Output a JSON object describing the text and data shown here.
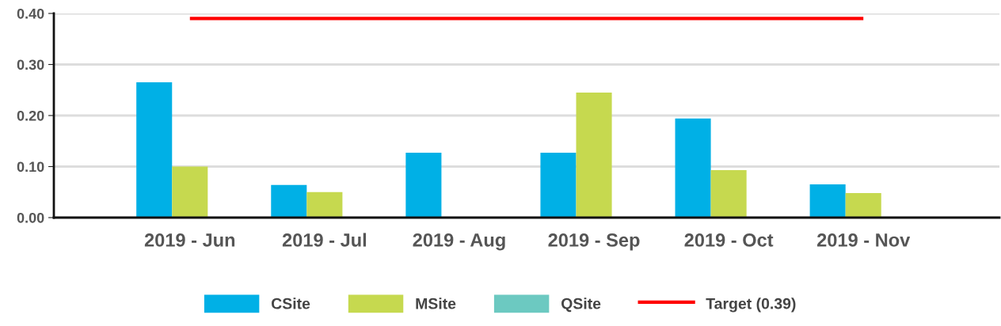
{
  "chart_data": {
    "type": "bar",
    "categories": [
      "2019 - Jun",
      "2019 - Jul",
      "2019 - Aug",
      "2019 - Sep",
      "2019 - Oct",
      "2019 - Nov"
    ],
    "series": [
      {
        "name": "CSite",
        "color": "#00b0e6",
        "values": [
          0.265,
          0.064,
          0.127,
          0.127,
          0.194,
          0.065
        ]
      },
      {
        "name": "MSite",
        "color": "#c6d94f",
        "values": [
          0.1,
          0.05,
          0,
          0.245,
          0.093,
          0.048
        ]
      },
      {
        "name": "QSite",
        "color": "#6cc9c1",
        "values": [
          0,
          0,
          0,
          0,
          0,
          0
        ]
      }
    ],
    "ylim": [
      0,
      0.4
    ],
    "yticks": [
      {
        "value": 0,
        "label": "0.00"
      },
      {
        "value": 0.1,
        "label": "0.10"
      },
      {
        "value": 0.2,
        "label": "0.20"
      },
      {
        "value": 0.3,
        "label": "0.30"
      },
      {
        "value": 0.4,
        "label": "0.40"
      }
    ],
    "ref_lines": [
      {
        "axis": "y",
        "value": 0.39,
        "label": "Target (0.39)",
        "color": "#ff0000",
        "line_style": "solid"
      }
    ],
    "grid": "y",
    "legend": "bottom"
  }
}
